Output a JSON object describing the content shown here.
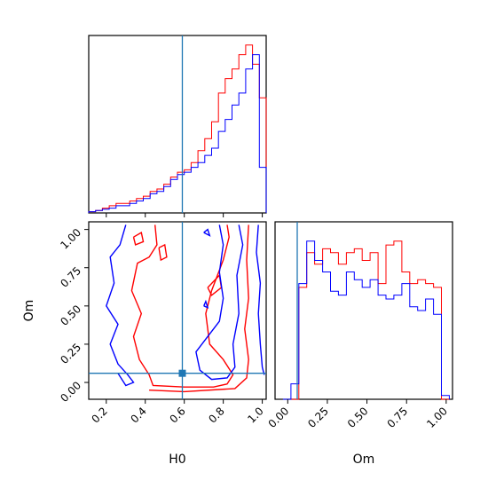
{
  "chart_data": {
    "type": "corner",
    "parameters": [
      "H0",
      "Om"
    ],
    "truth": {
      "H0": 0.59,
      "Om": 0.06
    },
    "colors": {
      "series_a": "#ff0000",
      "series_b": "#0000ff",
      "truth": "#1f77b4"
    },
    "series": [
      {
        "color": "#ff0000"
      },
      {
        "color": "#0000ff"
      }
    ],
    "panels": [
      {
        "id": "hist-H0",
        "type": "histogram-step",
        "xlim": [
          0.11,
          1.02
        ],
        "x_ticks": [
          0.2,
          0.4,
          0.6,
          0.8,
          1.0
        ],
        "y_ticks_shown": false,
        "bin_edges": [
          0.11,
          0.145,
          0.18,
          0.215,
          0.25,
          0.285,
          0.32,
          0.355,
          0.39,
          0.425,
          0.46,
          0.495,
          0.53,
          0.565,
          0.6,
          0.635,
          0.67,
          0.705,
          0.74,
          0.775,
          0.81,
          0.845,
          0.88,
          0.915,
          0.95,
          0.985,
          1.02
        ],
        "series_a_counts": [
          0.5,
          1,
          2,
          3,
          4,
          4,
          5,
          6,
          7,
          9,
          10,
          12,
          15,
          17,
          18,
          21,
          26,
          31,
          38,
          50,
          56,
          60,
          66,
          70,
          62,
          48
        ],
        "series_b_counts": [
          0.5,
          1,
          1.5,
          2,
          3,
          3,
          4,
          5,
          6,
          8,
          9,
          11,
          14,
          16,
          17,
          19,
          21,
          24,
          27,
          34,
          39,
          45,
          50,
          60,
          66,
          19
        ],
        "y_max": 74
      },
      {
        "id": "contour-H0-Om",
        "type": "contour-2d",
        "xlabel": "H0",
        "ylabel": "Om",
        "xlim": [
          0.11,
          1.02
        ],
        "ylim": [
          -0.11,
          1.05
        ],
        "x_ticks": [
          0.2,
          0.4,
          0.6,
          0.8,
          1.0
        ],
        "y_ticks": [
          0.0,
          0.25,
          0.5,
          0.75,
          1.0
        ],
        "x_tick_labels": [
          "0.2",
          "0.4",
          "0.6",
          "0.8",
          "1.0"
        ],
        "y_tick_labels": [
          "0.00",
          "0.25",
          "0.50",
          "0.75",
          "1.00"
        ],
        "contours": [
          {
            "color": "#ff0000",
            "points": [
              [
                0.45,
                1.03
              ],
              [
                0.46,
                0.9
              ],
              [
                0.42,
                0.82
              ],
              [
                0.36,
                0.78
              ],
              [
                0.33,
                0.6
              ],
              [
                0.38,
                0.45
              ],
              [
                0.34,
                0.3
              ],
              [
                0.37,
                0.15
              ],
              [
                0.42,
                0.05
              ],
              [
                0.44,
                -0.02
              ],
              [
                0.6,
                -0.03
              ],
              [
                0.75,
                -0.03
              ],
              [
                0.82,
                -0.01
              ],
              [
                0.85,
                0.05
              ],
              [
                0.8,
                0.15
              ],
              [
                0.73,
                0.25
              ],
              [
                0.71,
                0.45
              ],
              [
                0.74,
                0.6
              ],
              [
                0.8,
                0.8
              ],
              [
                0.83,
                0.95
              ],
              [
                0.82,
                1.03
              ]
            ]
          },
          {
            "color": "#ff0000",
            "points": [
              [
                0.34,
                0.95
              ],
              [
                0.38,
                0.98
              ],
              [
                0.39,
                0.92
              ],
              [
                0.35,
                0.9
              ],
              [
                0.34,
                0.95
              ]
            ]
          },
          {
            "color": "#ff0000",
            "points": [
              [
                0.47,
                0.88
              ],
              [
                0.5,
                0.9
              ],
              [
                0.51,
                0.82
              ],
              [
                0.48,
                0.8
              ],
              [
                0.47,
                0.88
              ]
            ]
          },
          {
            "color": "#ff0000",
            "points": [
              [
                0.72,
                0.62
              ],
              [
                0.78,
                0.7
              ],
              [
                0.79,
                0.62
              ],
              [
                0.74,
                0.57
              ],
              [
                0.72,
                0.62
              ]
            ]
          },
          {
            "color": "#ff0000",
            "points": [
              [
                0.93,
                1.03
              ],
              [
                0.92,
                0.8
              ],
              [
                0.93,
                0.55
              ],
              [
                0.91,
                0.35
              ],
              [
                0.93,
                0.15
              ],
              [
                0.92,
                0.03
              ],
              [
                0.86,
                -0.04
              ],
              [
                0.6,
                -0.06
              ],
              [
                0.42,
                -0.05
              ]
            ]
          },
          {
            "color": "#0000ff",
            "points": [
              [
                0.3,
                1.03
              ],
              [
                0.27,
                0.9
              ],
              [
                0.22,
                0.82
              ],
              [
                0.24,
                0.65
              ],
              [
                0.2,
                0.5
              ],
              [
                0.26,
                0.38
              ],
              [
                0.22,
                0.25
              ],
              [
                0.26,
                0.12
              ],
              [
                0.31,
                0.05
              ],
              [
                0.34,
                0.0
              ],
              [
                0.3,
                -0.02
              ],
              [
                0.26,
                0.06
              ]
            ]
          },
          {
            "color": "#0000ff",
            "points": [
              [
                0.7,
                0.98
              ],
              [
                0.72,
                1.0
              ],
              [
                0.73,
                0.96
              ],
              [
                0.7,
                0.98
              ]
            ]
          },
          {
            "color": "#0000ff",
            "points": [
              [
                0.7,
                0.5
              ],
              [
                0.71,
                0.53
              ],
              [
                0.72,
                0.49
              ],
              [
                0.7,
                0.5
              ]
            ]
          },
          {
            "color": "#0000ff",
            "points": [
              [
                0.78,
                1.03
              ],
              [
                0.8,
                0.9
              ],
              [
                0.78,
                0.72
              ],
              [
                0.8,
                0.55
              ],
              [
                0.78,
                0.4
              ],
              [
                0.72,
                0.3
              ],
              [
                0.66,
                0.2
              ],
              [
                0.68,
                0.08
              ],
              [
                0.74,
                0.02
              ],
              [
                0.82,
                0.03
              ],
              [
                0.86,
                0.1
              ],
              [
                0.85,
                0.25
              ],
              [
                0.88,
                0.45
              ],
              [
                0.87,
                0.7
              ],
              [
                0.9,
                0.9
              ],
              [
                0.88,
                1.03
              ]
            ]
          },
          {
            "color": "#0000ff",
            "points": [
              [
                0.98,
                1.03
              ],
              [
                0.97,
                0.85
              ],
              [
                0.99,
                0.65
              ],
              [
                0.98,
                0.45
              ],
              [
                0.99,
                0.25
              ],
              [
                1.0,
                0.1
              ],
              [
                1.01,
                0.05
              ]
            ]
          }
        ]
      },
      {
        "id": "hist-Om",
        "type": "histogram-step",
        "xlabel": "Om",
        "xlim": [
          -0.08,
          1.04
        ],
        "x_ticks": [
          0.0,
          0.25,
          0.5,
          0.75,
          1.0
        ],
        "x_tick_labels": [
          "0.00",
          "0.25",
          "0.50",
          "0.75",
          "1.00"
        ],
        "y_ticks_shown": false,
        "bin_edges": [
          -0.03,
          0.02,
          0.07,
          0.12,
          0.17,
          0.22,
          0.27,
          0.32,
          0.37,
          0.42,
          0.47,
          0.52,
          0.57,
          0.62,
          0.67,
          0.72,
          0.77,
          0.82,
          0.87,
          0.92,
          0.97,
          1.02
        ],
        "series_a_counts": [
          0,
          0,
          29,
          38,
          35,
          39,
          38,
          35,
          38,
          39,
          36,
          38,
          30,
          40,
          41,
          33,
          30,
          31,
          30,
          29,
          0
        ],
        "series_b_counts": [
          0,
          4,
          30,
          41,
          36,
          33,
          28,
          27,
          33,
          31,
          29,
          31,
          27,
          26,
          27,
          30,
          24,
          23,
          26,
          22,
          1
        ],
        "y_max": 46
      }
    ]
  }
}
